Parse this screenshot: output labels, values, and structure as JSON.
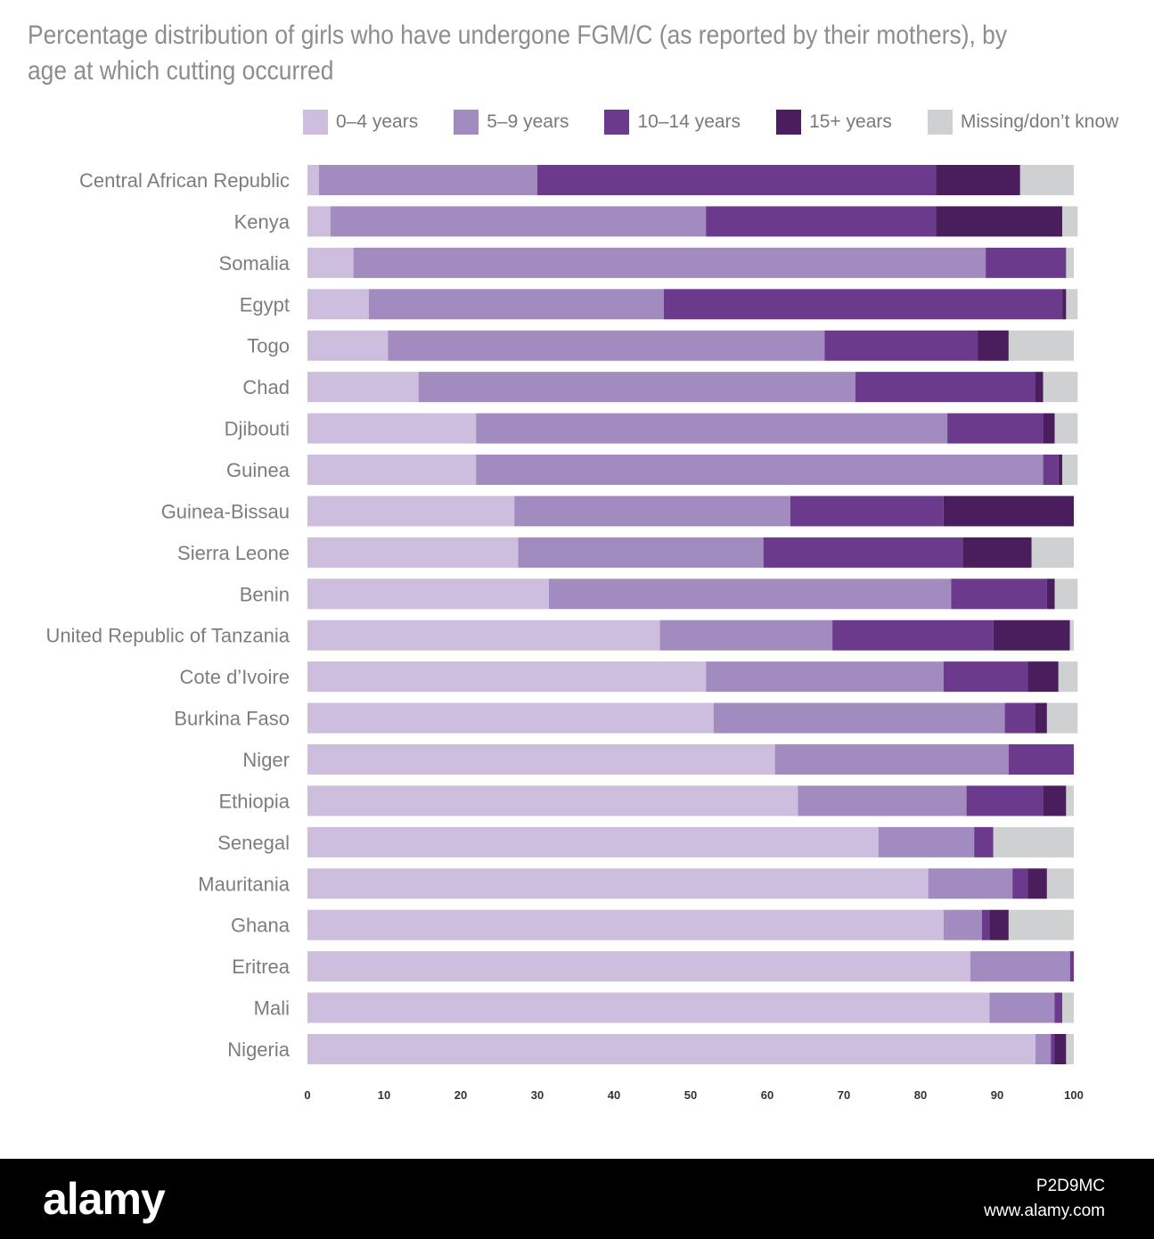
{
  "title_lines": [
    "Percentage distribution of girls who have undergone FGM/C (as reported by their mothers), by",
    "age at which cutting occurred"
  ],
  "legend": [
    {
      "label": "0–4 years",
      "color": "#cdbedd"
    },
    {
      "label": "5–9 years",
      "color": "#a28bbf"
    },
    {
      "label": "10–14 years",
      "color": "#6b3a8c"
    },
    {
      "label": "15+ years",
      "color": "#4a1e5c"
    },
    {
      "label": "Missing/don’t know",
      "color": "#cfd0d2"
    }
  ],
  "footer": {
    "logo": "alamy",
    "image_id": "P2D9MC",
    "url": "www.alamy.com"
  },
  "chart_data": {
    "type": "bar",
    "orientation": "horizontal",
    "stacked": true,
    "title": "Percentage distribution of girls who have undergone FGM/C (as reported by their mothers), by age at which cutting occurred",
    "xlim": [
      0,
      100
    ],
    "x_ticks": [
      "0",
      "10",
      "20",
      "30",
      "40",
      "50",
      "60",
      "70",
      "80",
      "90",
      "100"
    ],
    "legend_position": "top",
    "categories": [
      "Central African Republic",
      "Kenya",
      "Somalia",
      "Egypt",
      "Togo",
      "Chad",
      "Djibouti",
      "Guinea",
      "Guinea-Bissau",
      "Sierra Leone",
      "Benin",
      "United Republic of Tanzania",
      "Cote d’Ivoire",
      "Burkina Faso",
      "Niger",
      "Ethiopia",
      "Senegal",
      "Mauritania",
      "Ghana",
      "Eritrea",
      "Mali",
      "Nigeria"
    ],
    "series": [
      {
        "name": "0–4 years",
        "color": "#cdbedd",
        "values": [
          1.5,
          3,
          6,
          8,
          10.5,
          14.5,
          22,
          22,
          27,
          27.5,
          31.5,
          46,
          52,
          53,
          61,
          64,
          74.5,
          81,
          83,
          86.5,
          89,
          95
        ]
      },
      {
        "name": "5–9 years",
        "color": "#a28bbf",
        "values": [
          28.5,
          49,
          82.5,
          38.5,
          57,
          57,
          61.5,
          74,
          36,
          32,
          52.5,
          22.5,
          31,
          38,
          30.5,
          22,
          12.5,
          11,
          5,
          13,
          8.5,
          2
        ]
      },
      {
        "name": "10–14 years",
        "color": "#6b3a8c",
        "values": [
          52,
          30,
          10.5,
          52,
          20,
          23.5,
          12.5,
          2,
          20,
          26,
          12.5,
          21,
          11,
          4,
          8.5,
          10,
          2.5,
          2,
          1,
          0.5,
          1,
          0.5
        ]
      },
      {
        "name": "15+ years",
        "color": "#4a1e5c",
        "values": [
          11,
          16.5,
          0,
          0.5,
          4,
          1,
          1.5,
          0.5,
          17,
          9,
          1,
          10,
          4,
          1.5,
          0,
          3,
          0,
          2.5,
          2.5,
          0,
          0,
          1.5
        ]
      },
      {
        "name": "Missing/don’t know",
        "color": "#cfd0d2",
        "values": [
          7,
          2,
          1,
          1.5,
          8.5,
          4.5,
          3,
          2,
          0,
          5.5,
          3,
          0.5,
          2.5,
          4,
          0,
          1,
          10.5,
          3.5,
          8.5,
          0,
          1.5,
          1
        ]
      }
    ]
  }
}
